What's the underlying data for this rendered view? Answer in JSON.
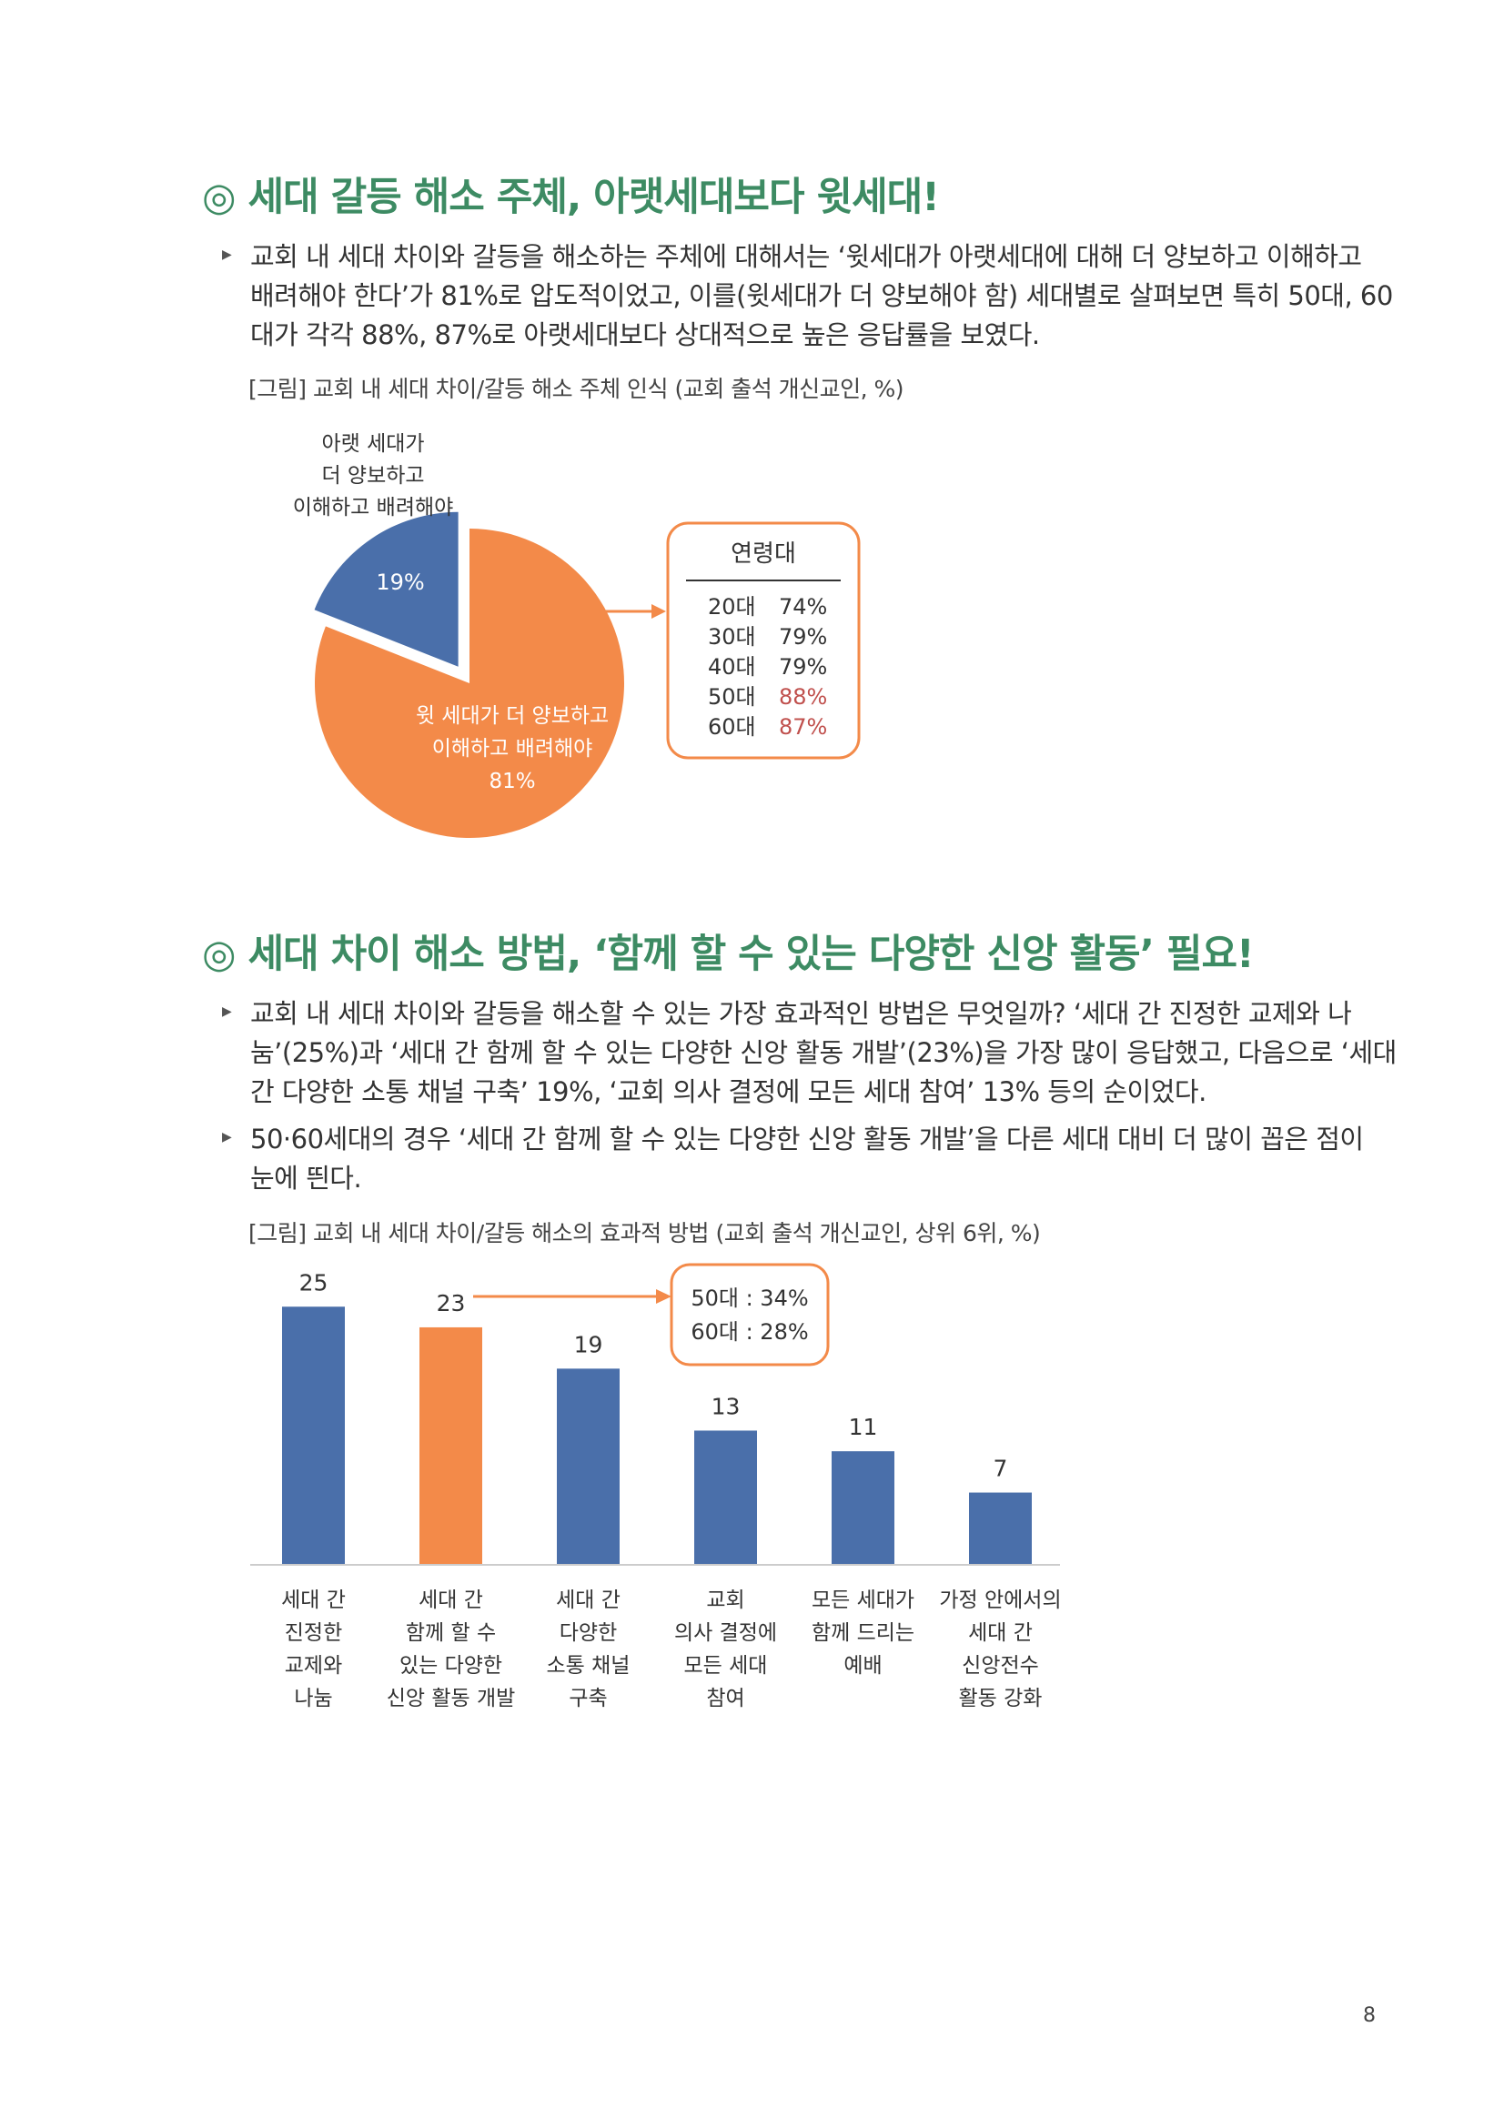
{
  "section1": {
    "heading": "◎ 세대 갈등 해소 주체, 아랫세대보다 윗세대!",
    "bullet_lines": [
      "교회 내 세대 차이와 갈등을 해소하는 주체에 대해서는 ‘윗세대가 아랫세대에 대해 더 양보하고 이해하고",
      "배려해야 한다’가 81%로 압도적이었고, 이를(윗세대가 더 양보해야 함) 세대별로 살펴보면 특히 50대, 60",
      "대가 각각 88%, 87%로 아랫세대보다 상대적으로 높은 응답률을 보였다."
    ],
    "caption": "[그림] 교회 내 세대 차이/갈등 해소 주체 인식 (교회 출석 개신교인, %)"
  },
  "section2": {
    "heading": "◎ 세대 차이 해소 방법, ‘함께 할 수 있는 다양한 신앙 활동’ 필요!",
    "bullet1_lines": [
      "교회 내 세대 차이와 갈등을 해소할 수 있는 가장 효과적인 방법은 무엇일까? ‘세대 간 진정한 교제와 나",
      "눔’(25%)과 ‘세대 간 함께 할 수 있는 다양한 신앙 활동 개발’(23%)을 가장 많이 응답했고, 다음으로 ‘세대",
      "간 다양한 소통 채널 구축’ 19%, ‘교회 의사 결정에 모든 세대 참여’ 13% 등의 순이었다."
    ],
    "bullet2_lines": [
      "50·60세대의 경우 ‘세대 간 함께 할 수 있는 다양한 신앙 활동 개발’을 다른 세대 대비 더 많이 꼽은 점이",
      "눈에 띈다."
    ],
    "caption": "[그림] 교회 내 세대 차이/갈등 해소의 효과적 방법 (교회 출석 개신교인, 상위 6위, %)"
  },
  "chart_data": [
    {
      "type": "pie",
      "slices": [
        {
          "label_lines": [
            "아랫 세대가",
            "더 양보하고",
            "이해하고 배려해야"
          ],
          "value": 19,
          "value_label": "19%",
          "color": "#4a6faa"
        },
        {
          "label_lines": [
            "윗 세대가 더 양보하고",
            "이해하고 배려해야"
          ],
          "value": 81,
          "value_label": "81%",
          "color": "#f38a49"
        }
      ],
      "callout": {
        "title": "연령대",
        "rows": [
          {
            "age": "20대",
            "value": "74%",
            "highlight": false
          },
          {
            "age": "30대",
            "value": "79%",
            "highlight": false
          },
          {
            "age": "40대",
            "value": "79%",
            "highlight": false
          },
          {
            "age": "50대",
            "value": "88%",
            "highlight": true
          },
          {
            "age": "60대",
            "value": "87%",
            "highlight": true
          }
        ],
        "border_color": "#f38a49",
        "highlight_color": "#c0504d"
      }
    },
    {
      "type": "bar",
      "categories": [
        [
          "세대 간",
          "진정한",
          "교제와",
          "나눔"
        ],
        [
          "세대 간",
          "함께 할 수",
          "있는 다양한",
          "신앙 활동 개발"
        ],
        [
          "세대 간",
          "다양한",
          "소통 채널",
          "구축"
        ],
        [
          "교회",
          "의사 결정에",
          "모든 세대",
          "참여"
        ],
        [
          "모든 세대가",
          "함께 드리는",
          "예배"
        ],
        [
          "가정 안에서의",
          "세대 간",
          "신앙전수",
          "활동 강화"
        ]
      ],
      "values": [
        25,
        23,
        19,
        13,
        11,
        7
      ],
      "highlight_index": 1,
      "ylim": [
        0,
        25
      ],
      "colors": {
        "default": "#4a6faa",
        "highlight": "#f38a49"
      },
      "callout": {
        "lines": [
          "50대 : 34%",
          "60대 : 28%"
        ],
        "border_color": "#f38a49"
      }
    }
  ],
  "page_number": "8"
}
